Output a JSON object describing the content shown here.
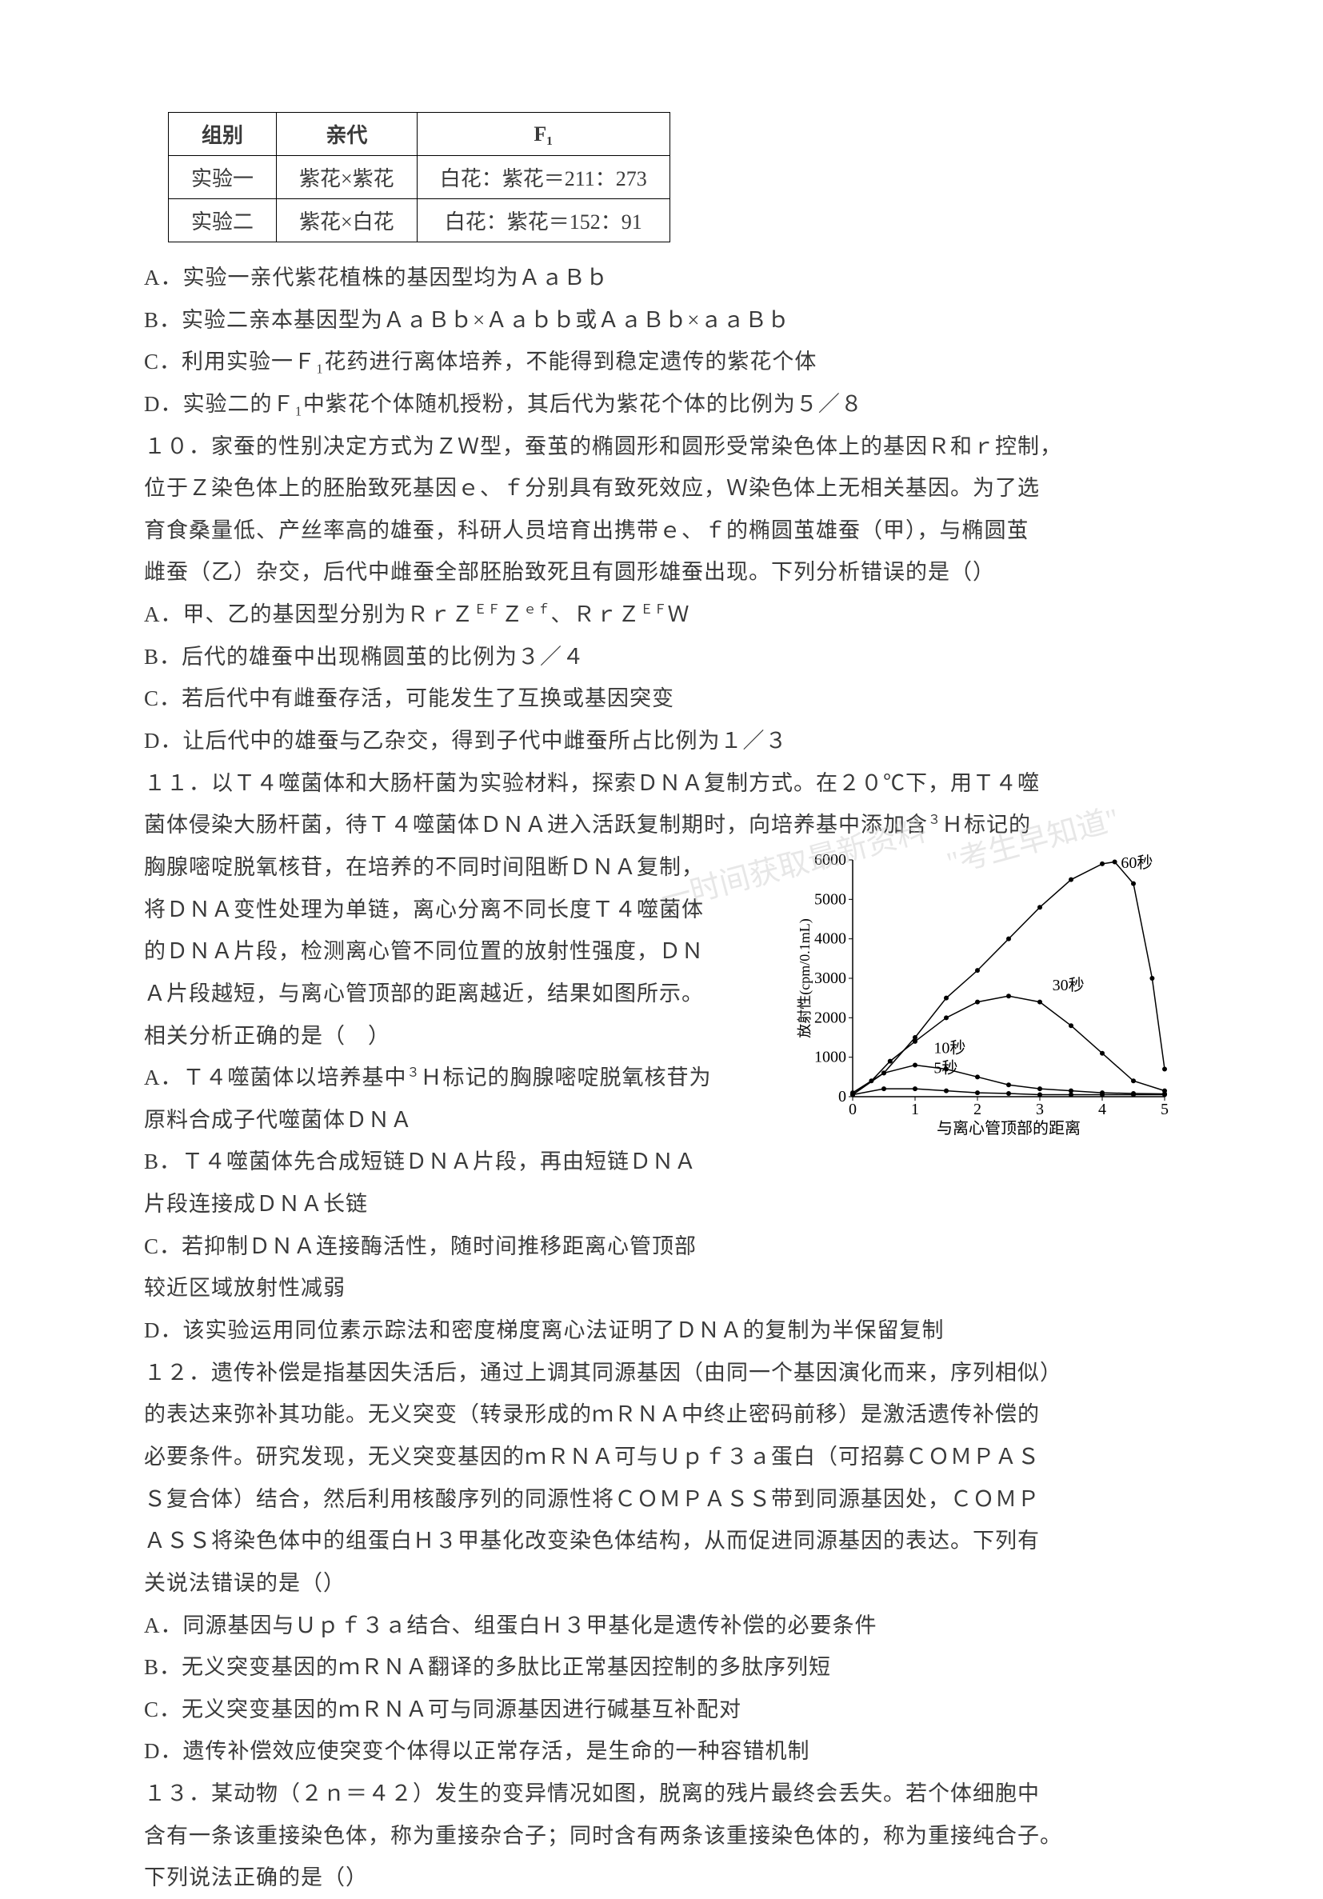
{
  "table": {
    "headers": [
      "组别",
      "亲代",
      "F₁"
    ],
    "rows": [
      [
        "实验一",
        "紫花×紫花",
        "白花：紫花＝211：273"
      ],
      [
        "实验二",
        "紫花×白花",
        "白花：紫花＝152：91"
      ]
    ],
    "border_color": "#000000",
    "cell_padding": 8,
    "font_size": 26
  },
  "q9": {
    "optA": "A．实验一亲代紫花植株的基因型均为ＡａＢｂ",
    "optB": "B．实验二亲本基因型为ＡａＢｂ×Ａａｂｂ或ＡａＢｂ×ａａＢｂ",
    "optC": "C．利用实验一Ｆ₁花药进行离体培养，不能得到稳定遗传的紫花个体",
    "optD": "D．实验二的Ｆ₁中紫花个体随机授粉，其后代为紫花个体的比例为５／８"
  },
  "q10": {
    "stem1": "１０．家蚕的性别决定方式为ＺＷ型，蚕茧的椭圆形和圆形受常染色体上的基因Ｒ和ｒ控制，",
    "stem2": "位于Ｚ染色体上的胚胎致死基因ｅ、ｆ分别具有致死效应，Ｗ染色体上无相关基因。为了选",
    "stem3": "育食桑量低、产丝率高的雄蚕，科研人员培育出携带ｅ、ｆ的椭圆茧雄蚕（甲），与椭圆茧",
    "stem4": "雌蚕（乙）杂交，后代中雌蚕全部胚胎致死且有圆形雄蚕出现。下列分析错误的是（）",
    "optA_pre": "A．甲、乙的基因型分别为ＲｒＺ",
    "optA_sup1": "ＥＦ",
    "optA_mid1": "Ｚ",
    "optA_sup2": "ｅｆ",
    "optA_mid2": "、ＲｒＺ",
    "optA_sup3": "ＥＦ",
    "optA_end": "Ｗ",
    "optB": "B．后代的雄蚕中出现椭圆茧的比例为３／４",
    "optC": "C．若后代中有雌蚕存活，可能发生了互换或基因突变",
    "optD": "D．让后代中的雄蚕与乙杂交，得到子代中雌蚕所占比例为１／３"
  },
  "q11": {
    "stem1": "１１．以Ｔ４噬菌体和大肠杆菌为实验材料，探索ＤＮＡ复制方式。在２０℃下，用Ｔ４噬",
    "stem2_pre": "菌体侵染大肠杆菌，待Ｔ４噬菌体ＤＮＡ进入活跃复制期时，向培养基中添加含",
    "stem2_sup": "３",
    "stem2_end": "Ｈ标记的",
    "stem3": "胸腺嘧啶脱氧核苷，在培养的不同时间阻断ＤＮＡ复制，",
    "stem4": "将ＤＮＡ变性处理为单链，离心分离不同长度Ｔ４噬菌体",
    "stem5": "的ＤＮＡ片段，检测离心管不同位置的放射性强度，ＤＮ",
    "stem6": "Ａ片段越短，与离心管顶部的距离越近，结果如图所示。",
    "stem7": "相关分析正确的是（　）",
    "optA_pre": "A．Ｔ４噬菌体以培养基中",
    "optA_sup": "３",
    "optA_end": "Ｈ标记的胸腺嘧啶脱氧核苷为",
    "optA2": "原料合成子代噬菌体ＤＮＡ",
    "optB": "B．Ｔ４噬菌体先合成短链ＤＮＡ片段，再由短链ＤＮＡ",
    "optB2": "片段连接成ＤＮＡ长链",
    "optC": "C．若抑制ＤＮＡ连接酶活性，随时间推移距离心管顶部",
    "optC2": "较近区域放射性减弱",
    "optD": "D．该实验运用同位素示踪法和密度梯度离心法证明了ＤＮＡ的复制为半保留复制"
  },
  "chart": {
    "type": "line",
    "x_label": "与离心管顶部的距离",
    "y_label": "放射性(cpm/0.1mL)",
    "xlim": [
      0,
      5
    ],
    "ylim": [
      0,
      6000
    ],
    "x_ticks": [
      0,
      1,
      2,
      3,
      4,
      5
    ],
    "y_ticks": [
      0,
      1000,
      2000,
      3000,
      4000,
      5000,
      6000
    ],
    "background_color": "#ffffff",
    "line_color": "#000000",
    "marker_color": "#000000",
    "font_size": 20,
    "series": [
      {
        "label": "5秒",
        "points": [
          [
            0,
            50
          ],
          [
            0.5,
            200
          ],
          [
            1,
            200
          ],
          [
            1.5,
            150
          ],
          [
            2,
            100
          ],
          [
            2.5,
            80
          ],
          [
            3,
            50
          ],
          [
            3.5,
            50
          ],
          [
            4,
            50
          ],
          [
            4.5,
            50
          ],
          [
            5,
            50
          ]
        ]
      },
      {
        "label": "10秒",
        "points": [
          [
            0,
            50
          ],
          [
            0.5,
            600
          ],
          [
            1,
            800
          ],
          [
            1.5,
            700
          ],
          [
            2,
            500
          ],
          [
            2.5,
            300
          ],
          [
            3,
            200
          ],
          [
            3.5,
            150
          ],
          [
            4,
            100
          ],
          [
            4.5,
            80
          ],
          [
            5,
            70
          ]
        ]
      },
      {
        "label": "30秒",
        "points": [
          [
            0,
            50
          ],
          [
            0.3,
            400
          ],
          [
            0.6,
            900
          ],
          [
            1,
            1400
          ],
          [
            1.5,
            2000
          ],
          [
            2,
            2400
          ],
          [
            2.5,
            2550
          ],
          [
            3,
            2400
          ],
          [
            3.5,
            1800
          ],
          [
            4,
            1100
          ],
          [
            4.5,
            400
          ],
          [
            5,
            150
          ]
        ]
      },
      {
        "label": "60秒",
        "points": [
          [
            0,
            100
          ],
          [
            0.5,
            600
          ],
          [
            1,
            1500
          ],
          [
            1.5,
            2500
          ],
          [
            2,
            3200
          ],
          [
            2.5,
            4000
          ],
          [
            3,
            4800
          ],
          [
            3.5,
            5500
          ],
          [
            4,
            5900
          ],
          [
            4.2,
            5950
          ],
          [
            4.5,
            5400
          ],
          [
            4.8,
            3000
          ],
          [
            5,
            700
          ]
        ]
      }
    ],
    "label_positions": {
      "5秒": [
        1.3,
        600
      ],
      "10秒": [
        1.3,
        1100
      ],
      "30秒": [
        3.2,
        2700
      ],
      "60秒": [
        4.3,
        5800
      ]
    }
  },
  "q12": {
    "stem1": "１２．遗传补偿是指基因失活后，通过上调其同源基因（由同一个基因演化而来，序列相似）",
    "stem2": "的表达来弥补其功能。无义突变（转录形成的ｍＲＮＡ中终止密码前移）是激活遗传补偿的",
    "stem3": "必要条件。研究发现，无义突变基因的ｍＲＮＡ可与Ｕｐｆ３ａ蛋白（可招募ＣＯＭＰＡＳ",
    "stem4": "Ｓ复合体）结合，然后利用核酸序列的同源性将ＣＯＭＰＡＳＳ带到同源基因处，ＣＯＭＰ",
    "stem5": "ＡＳＳ将染色体中的组蛋白Ｈ３甲基化改变染色体结构，从而促进同源基因的表达。下列有",
    "stem6": "关说法错误的是（）",
    "optA": "A．同源基因与Ｕｐｆ３ａ结合、组蛋白Ｈ３甲基化是遗传补偿的必要条件",
    "optB": "B．无义突变基因的ｍＲＮＡ翻译的多肽比正常基因控制的多肽序列短",
    "optC": "C．无义突变基因的ｍＲＮＡ可与同源基因进行碱基互补配对",
    "optD": "D．遗传补偿效应使突变个体得以正常存活，是生命的一种容错机制"
  },
  "q13": {
    "stem1": "１３．某动物（２ｎ＝４２）发生的变异情况如图，脱离的残片最终会丢失。若个体细胞中",
    "stem2": "含有一条该重接染色体，称为重接杂合子；同时含有两条该重接染色体的，称为重接纯合子。",
    "stem3": "下列说法正确的是（）"
  },
  "watermarks": {
    "wm1": "",
    "wm2": "一时间获取最新资料",
    "wm3": "\"考生早知道\""
  }
}
